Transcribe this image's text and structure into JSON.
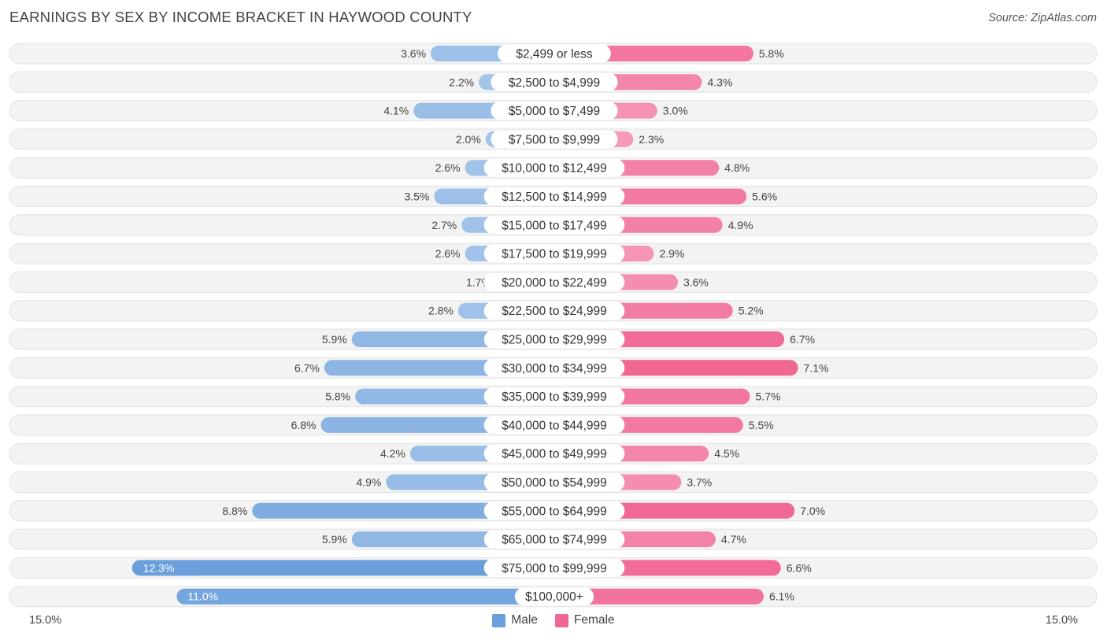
{
  "header": {
    "title": "EARNINGS BY SEX BY INCOME BRACKET IN HAYWOOD COUNTY",
    "source": "Source: ZipAtlas.com"
  },
  "axis": {
    "left_label": "15.0%",
    "right_label": "15.0%"
  },
  "legend": {
    "male_label": "Male",
    "female_label": "Female"
  },
  "colors": {
    "male_light": "#a9c8eb",
    "male_dark": "#6a9fdc",
    "female_light": "#f7a9c4",
    "female_dark": "#f06792",
    "row_bg": "#f0f0f0"
  },
  "chart_data": {
    "type": "bar",
    "orientation": "diverging-horizontal",
    "title": "EARNINGS BY SEX BY INCOME BRACKET IN HAYWOOD COUNTY",
    "xlim": [
      -15.0,
      15.0
    ],
    "unit": "%",
    "categories": [
      "$2,499 or less",
      "$2,500 to $4,999",
      "$5,000 to $7,499",
      "$7,500 to $9,999",
      "$10,000 to $12,499",
      "$12,500 to $14,999",
      "$15,000 to $17,499",
      "$17,500 to $19,999",
      "$20,000 to $22,499",
      "$22,500 to $24,999",
      "$25,000 to $29,999",
      "$30,000 to $34,999",
      "$35,000 to $39,999",
      "$40,000 to $44,999",
      "$45,000 to $49,999",
      "$50,000 to $54,999",
      "$55,000 to $64,999",
      "$65,000 to $74,999",
      "$75,000 to $99,999",
      "$100,000+"
    ],
    "series": [
      {
        "name": "Male",
        "values": [
          3.6,
          2.2,
          4.1,
          2.0,
          2.6,
          3.5,
          2.7,
          2.6,
          1.7,
          2.8,
          5.9,
          6.7,
          5.8,
          6.8,
          4.2,
          4.9,
          8.8,
          5.9,
          12.3,
          11.0
        ]
      },
      {
        "name": "Female",
        "values": [
          5.8,
          4.3,
          3.0,
          2.3,
          4.8,
          5.6,
          4.9,
          2.9,
          3.6,
          5.2,
          6.7,
          7.1,
          5.7,
          5.5,
          4.5,
          3.7,
          7.0,
          4.7,
          6.6,
          6.1
        ]
      }
    ]
  }
}
